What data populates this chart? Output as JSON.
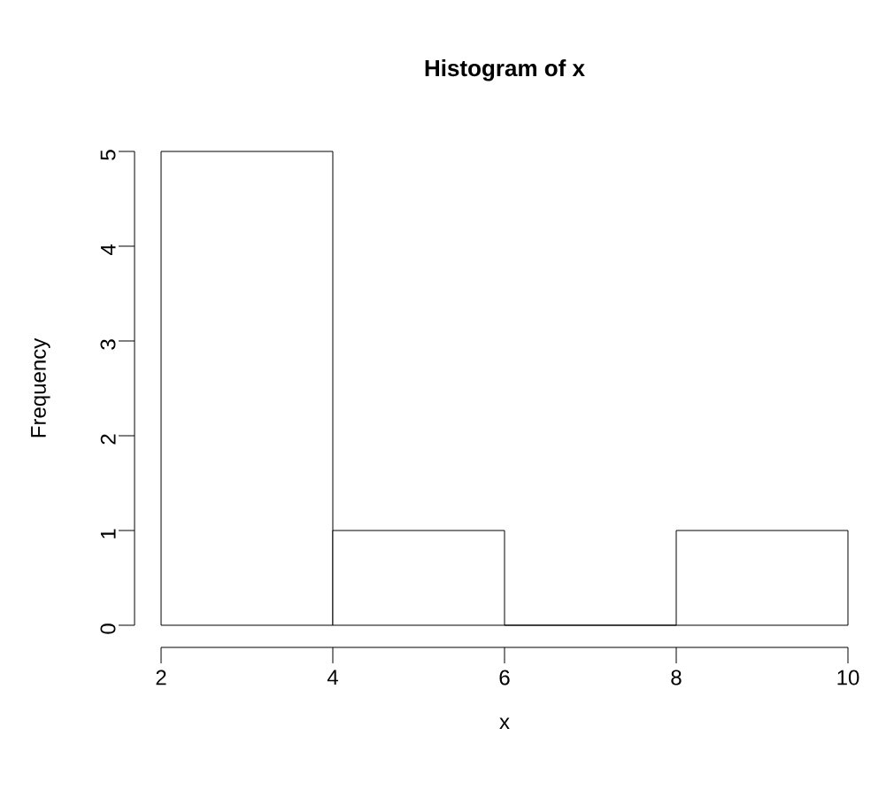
{
  "chart_data": {
    "type": "histogram",
    "title": "Histogram of x",
    "xlabel": "x",
    "ylabel": "Frequency",
    "bins": [
      2,
      4,
      6,
      8,
      10
    ],
    "values": [
      5,
      1,
      0,
      1
    ],
    "xlim": [
      2,
      10
    ],
    "ylim": [
      0,
      5
    ],
    "xticks": [
      2,
      4,
      6,
      8,
      10
    ],
    "yticks": [
      0,
      1,
      2,
      3,
      4,
      5
    ]
  }
}
